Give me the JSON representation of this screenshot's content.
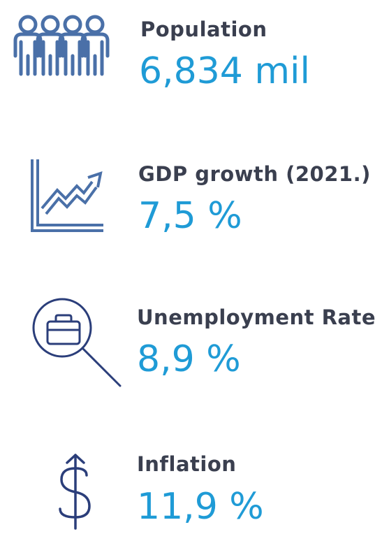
{
  "colors": {
    "label": "#3a3f4f",
    "value": "#1f9bd6",
    "icon_light": "#4a70a8",
    "icon_dark": "#2b3e7a"
  },
  "stats": [
    {
      "icon": "people-icon",
      "label": "Population",
      "value": "6,834 mil"
    },
    {
      "icon": "growth-chart-icon",
      "label": "GDP growth (2021.)",
      "value": "7,5 %"
    },
    {
      "icon": "job-search-icon",
      "label": "Unemployment Rate",
      "value": "8,9 %"
    },
    {
      "icon": "dollar-icon",
      "label": "Inflation",
      "value": "11,9 %"
    }
  ]
}
